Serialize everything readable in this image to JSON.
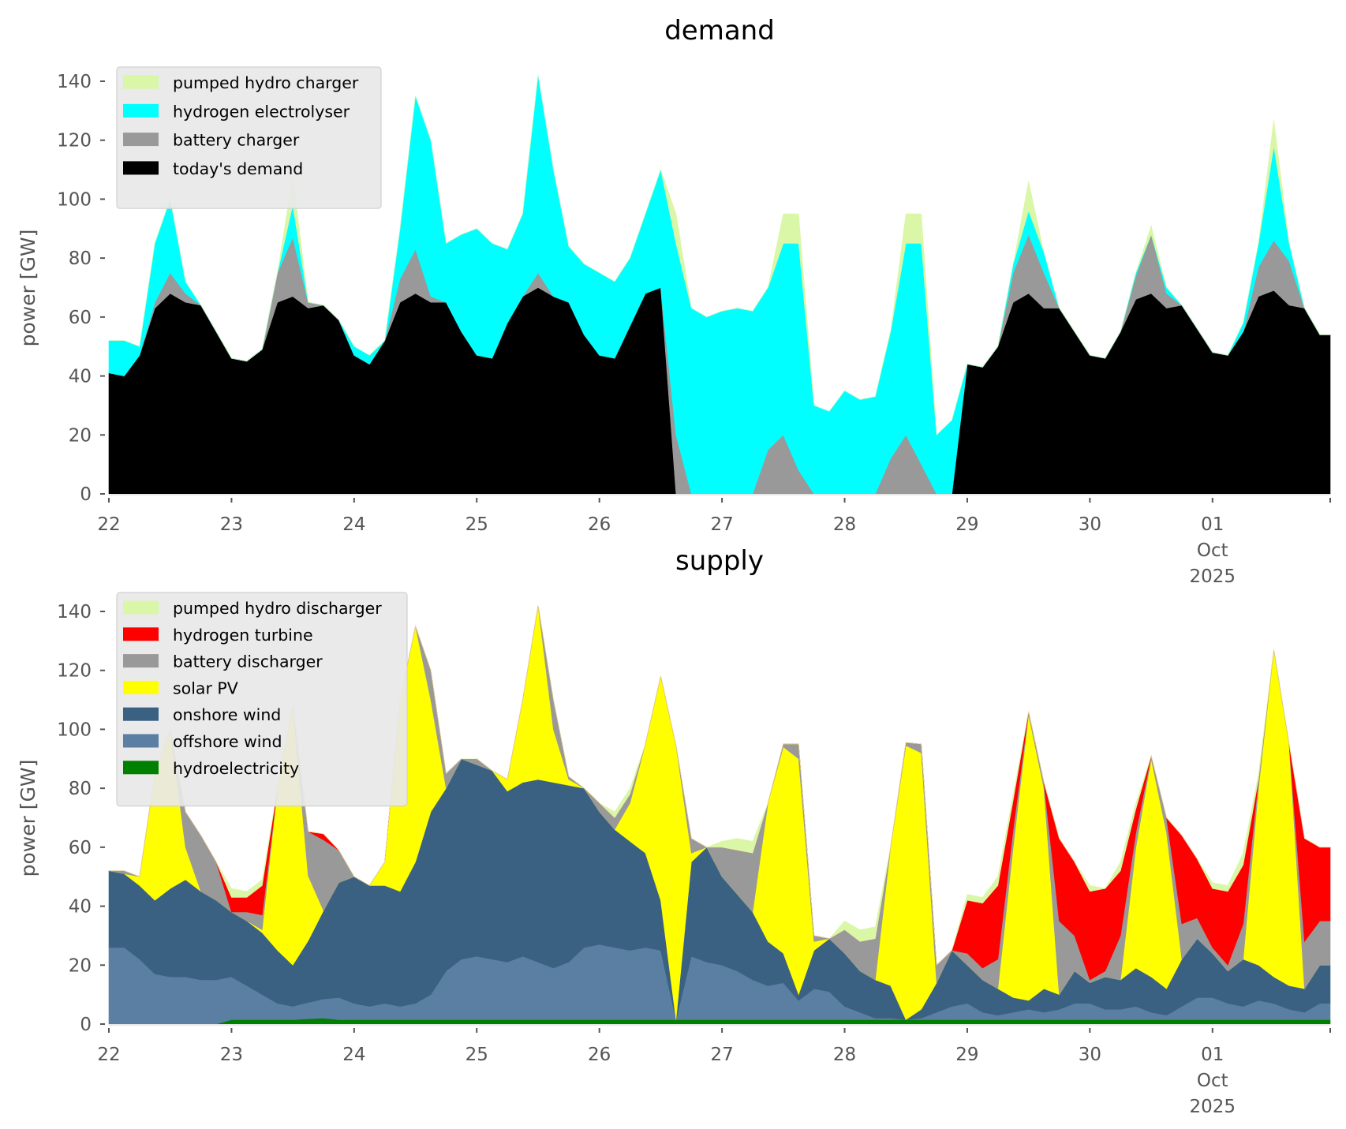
{
  "chart_data": [
    {
      "type": "area",
      "stacked": true,
      "title": "demand",
      "xlabel": "",
      "ylabel": "power [GW]",
      "ylim": [
        0,
        150
      ],
      "yticks": [
        0,
        20,
        40,
        60,
        80,
        100,
        120,
        140
      ],
      "xlim_days": [
        0,
        9.96
      ],
      "x_start": "2025-09-22 00:00",
      "step_hours": 3,
      "xticks": [
        {
          "day": 0,
          "lines": [
            "22"
          ]
        },
        {
          "day": 1,
          "lines": [
            "23"
          ]
        },
        {
          "day": 2,
          "lines": [
            "24"
          ]
        },
        {
          "day": 3,
          "lines": [
            "25"
          ]
        },
        {
          "day": 4,
          "lines": [
            "26"
          ]
        },
        {
          "day": 5,
          "lines": [
            "27"
          ]
        },
        {
          "day": 6,
          "lines": [
            "28"
          ]
        },
        {
          "day": 7,
          "lines": [
            "29"
          ]
        },
        {
          "day": 8,
          "lines": [
            "30"
          ]
        },
        {
          "day": 9,
          "lines": [
            "01",
            "Oct",
            "2025"
          ]
        }
      ],
      "legend_position": "upper-left",
      "grid": false,
      "series": [
        {
          "name": "today's demand",
          "color": "#000000",
          "values": [
            41,
            40,
            47,
            63,
            68,
            65,
            64,
            55,
            46,
            45,
            49,
            65,
            67,
            63,
            64,
            59,
            47,
            44,
            52,
            65,
            68,
            65,
            65,
            55,
            47,
            46,
            58,
            67,
            70,
            67,
            65,
            54,
            47,
            46,
            57,
            68,
            70,
            0,
            0,
            0,
            0,
            0,
            0,
            0,
            0,
            0,
            0,
            0,
            0,
            0,
            0,
            0,
            0,
            0,
            0,
            0,
            44,
            43,
            50,
            65,
            68,
            63,
            63,
            55,
            47,
            46,
            55,
            66,
            68,
            63,
            64,
            56,
            48,
            47,
            55,
            67,
            69,
            64,
            63,
            54
          ]
        },
        {
          "name": "battery charger",
          "color": "#999999",
          "values": [
            0,
            0,
            0,
            2,
            7,
            3,
            0,
            0,
            0,
            0,
            0,
            10,
            20,
            2,
            0,
            0,
            0,
            0,
            0,
            8,
            15,
            2,
            0,
            0,
            0,
            0,
            0,
            0,
            5,
            0,
            0,
            0,
            0,
            0,
            0,
            0,
            0,
            20,
            0,
            0,
            0,
            0,
            0,
            15,
            20,
            8,
            0,
            0,
            0,
            0,
            0,
            12,
            20,
            10,
            0,
            0,
            0,
            0,
            0,
            10,
            20,
            12,
            0,
            0,
            0,
            0,
            0,
            8,
            20,
            5,
            0,
            0,
            0,
            0,
            0,
            10,
            17,
            15,
            0,
            0
          ]
        },
        {
          "name": "hydrogen electrolyser",
          "color": "#00ffff",
          "values": [
            11,
            12,
            3,
            20,
            25,
            4,
            0,
            0,
            0,
            0,
            0,
            0,
            11,
            0,
            0,
            0,
            3,
            3,
            0,
            17,
            52,
            53,
            20,
            33,
            43,
            39,
            25,
            28,
            67,
            43,
            19,
            24,
            28,
            26,
            23,
            27,
            40,
            65,
            63,
            60,
            62,
            63,
            62,
            55,
            65,
            77,
            30,
            28,
            35,
            32,
            33,
            43,
            65,
            75,
            20,
            25,
            0,
            0,
            0,
            3,
            8,
            7,
            0,
            0,
            0,
            0,
            0,
            1,
            0,
            2,
            0,
            0,
            0,
            0,
            3,
            8,
            32,
            6,
            0,
            0
          ]
        },
        {
          "name": "pumped hydro charger",
          "color": "#d9f7a6",
          "values": [
            0,
            0,
            0,
            0,
            0,
            0,
            0,
            0,
            0,
            0,
            0,
            0,
            10,
            0,
            0,
            0,
            0,
            0,
            0,
            0,
            0,
            0,
            0,
            0,
            0,
            0,
            0,
            0,
            0,
            0,
            0,
            0,
            0,
            0,
            0,
            0,
            0,
            10,
            0,
            0,
            0,
            0,
            0,
            0,
            10,
            10,
            0,
            0,
            0,
            0,
            0,
            0,
            10,
            10,
            0,
            0,
            0,
            0,
            0,
            0,
            10,
            0,
            0,
            0,
            0,
            0,
            0,
            0,
            3,
            0,
            0,
            0,
            0,
            0,
            0,
            0,
            9,
            0,
            0,
            0
          ]
        }
      ],
      "legend_order": [
        "pumped hydro charger",
        "hydrogen electrolyser",
        "battery charger",
        "today's demand"
      ]
    },
    {
      "type": "area",
      "stacked": true,
      "title": "supply",
      "xlabel": "",
      "ylabel": "power [GW]",
      "ylim": [
        0,
        150
      ],
      "yticks": [
        0,
        20,
        40,
        60,
        80,
        100,
        120,
        140
      ],
      "xlim_days": [
        0,
        9.96
      ],
      "x_start": "2025-09-22 00:00",
      "step_hours": 3,
      "xticks": [
        {
          "day": 0,
          "lines": [
            "22"
          ]
        },
        {
          "day": 1,
          "lines": [
            "23"
          ]
        },
        {
          "day": 2,
          "lines": [
            "24"
          ]
        },
        {
          "day": 3,
          "lines": [
            "25"
          ]
        },
        {
          "day": 4,
          "lines": [
            "26"
          ]
        },
        {
          "day": 5,
          "lines": [
            "27"
          ]
        },
        {
          "day": 6,
          "lines": [
            "28"
          ]
        },
        {
          "day": 7,
          "lines": [
            "29"
          ]
        },
        {
          "day": 8,
          "lines": [
            "30"
          ]
        },
        {
          "day": 9,
          "lines": [
            "01",
            "Oct",
            "2025"
          ]
        }
      ],
      "legend_position": "upper-left",
      "grid": false,
      "series": [
        {
          "name": "hydroelectricity",
          "color": "#008000",
          "values": [
            0,
            0,
            0,
            0,
            0,
            0,
            0,
            0,
            1.5,
            1.5,
            1.5,
            1.5,
            1.5,
            1.8,
            2,
            1.5,
            1.5,
            1.5,
            1.5,
            1.5,
            1.5,
            1.5,
            1.5,
            1.5,
            1.5,
            1.5,
            1.5,
            1.5,
            1.5,
            1.5,
            1.5,
            1.5,
            1.5,
            1.5,
            1.5,
            1.5,
            1.5,
            1.5,
            1.5,
            1.5,
            1.5,
            1.5,
            1.5,
            1.5,
            1.5,
            1.5,
            1.5,
            1.5,
            1.5,
            1.5,
            1.5,
            1.5,
            1.5,
            1.5,
            1.5,
            1.5,
            1.5,
            1.5,
            1.5,
            1.5,
            1.5,
            1.5,
            1.5,
            1.5,
            1.5,
            1.5,
            1.5,
            1.5,
            1.5,
            1.5,
            1.5,
            1.5,
            1.5,
            1.5,
            1.5,
            1.5,
            1.5,
            1.5,
            1.5,
            1.5
          ]
        },
        {
          "name": "offshore wind",
          "color": "#5b7fa2",
          "values": [
            26,
            26,
            22,
            17,
            16,
            16,
            15,
            15,
            14.5,
            11.5,
            8.5,
            5.5,
            4.5,
            5.5,
            6.5,
            7.5,
            5.5,
            4.5,
            5.5,
            4.5,
            5.5,
            8.5,
            16.5,
            20.5,
            21.5,
            20.5,
            19.5,
            21.5,
            19.5,
            17.5,
            19.5,
            24.5,
            25.5,
            24.5,
            23.5,
            24.5,
            23.5,
            0,
            21.5,
            19.5,
            18.5,
            16.5,
            13.5,
            11.5,
            12.5,
            6.5,
            10.5,
            9.5,
            4.5,
            2.5,
            0.5,
            0.5,
            0,
            0.5,
            2.5,
            4.5,
            5.5,
            2.5,
            1.5,
            2.5,
            3.5,
            2.5,
            3.5,
            5.5,
            5.5,
            3.5,
            3.5,
            4.5,
            2.5,
            1.5,
            4.5,
            7.5,
            7.5,
            5.5,
            4.5,
            6.5,
            5.5,
            3.5,
            2.5,
            5.5
          ]
        },
        {
          "name": "onshore wind",
          "color": "#3b6182",
          "values": [
            26,
            25,
            25,
            25,
            30,
            33,
            30,
            27,
            22,
            22,
            21,
            18,
            14,
            21,
            30,
            39,
            43,
            41,
            40,
            39,
            48,
            62,
            62,
            68,
            65,
            64,
            58,
            59,
            62,
            63,
            60,
            54,
            45,
            40,
            37,
            32,
            17,
            0,
            32,
            39,
            30,
            26,
            23,
            15,
            10,
            2,
            13,
            18,
            18,
            14,
            13,
            11,
            0,
            3,
            10,
            19,
            13,
            11,
            9,
            5,
            3,
            8,
            5,
            11,
            7,
            11,
            10,
            13,
            12,
            9,
            16,
            20,
            15,
            11,
            16,
            12,
            9,
            8,
            8,
            13
          ]
        },
        {
          "name": "solar PV",
          "color": "#ffff00",
          "values": [
            0,
            0,
            3,
            43,
            54,
            11,
            0,
            0,
            0,
            0,
            1,
            55,
            88,
            22,
            0,
            0,
            0,
            0,
            8,
            65,
            80,
            38,
            0,
            0,
            0,
            0,
            4,
            28,
            59,
            18,
            2,
            0,
            0,
            0,
            13,
            37,
            76,
            93,
            3,
            0,
            0,
            0,
            0,
            47,
            70,
            80,
            3,
            0,
            0,
            0,
            0,
            47,
            93,
            87,
            0,
            0,
            0,
            0,
            0,
            51,
            97,
            68,
            0,
            0,
            0,
            0,
            0,
            41,
            74,
            53,
            0,
            0,
            0,
            0,
            0,
            60,
            111,
            82,
            0,
            0
          ]
        },
        {
          "name": "battery discharger",
          "color": "#999999",
          "values": [
            0,
            1,
            0,
            0,
            0,
            12,
            19,
            13,
            0,
            3,
            5,
            0,
            0,
            15,
            24,
            11,
            0,
            0,
            0,
            0,
            0,
            10,
            5,
            0,
            2,
            0,
            0,
            0,
            0,
            10,
            1,
            0,
            3,
            4,
            3,
            0,
            0,
            0,
            5,
            0,
            10,
            15,
            20,
            0,
            1,
            5,
            2,
            0,
            8,
            10,
            14,
            0,
            1,
            3,
            6,
            0,
            4,
            4,
            10,
            6,
            1,
            2,
            25,
            12,
            1,
            2,
            15,
            5,
            1,
            5,
            12,
            7,
            2,
            2,
            12,
            3,
            0,
            0,
            16,
            15
          ]
        },
        {
          "name": "hydrogen turbine",
          "color": "#ff0000",
          "values": [
            0,
            0,
            0,
            0,
            0,
            0,
            0,
            0,
            5,
            5,
            10,
            0,
            0,
            0,
            2,
            0,
            0,
            0,
            0,
            0,
            0,
            0,
            0,
            0,
            0,
            0,
            0,
            0,
            0,
            0,
            0,
            0,
            0,
            0,
            0,
            0,
            0,
            0,
            0,
            0,
            0,
            0,
            0,
            0,
            0,
            0,
            0,
            0,
            0,
            0,
            0,
            0,
            0,
            0,
            0,
            0,
            18,
            22,
            25,
            10,
            0,
            0,
            28,
            25,
            30,
            28,
            22,
            8,
            0,
            0,
            30,
            20,
            20,
            25,
            20,
            0,
            0,
            0,
            35,
            25
          ]
        },
        {
          "name": "pumped hydro discharger",
          "color": "#d9f7a6",
          "values": [
            0,
            0,
            0,
            0,
            0,
            0,
            0,
            0,
            3,
            2,
            2,
            0,
            0,
            0,
            0,
            0,
            0,
            0,
            0,
            0,
            0,
            0,
            0,
            0,
            0,
            0,
            0,
            0,
            0,
            0,
            0,
            0,
            0,
            2,
            2,
            0,
            0,
            0,
            0,
            0,
            2,
            4,
            4,
            0,
            0,
            0,
            0,
            0,
            3,
            4,
            4,
            0,
            0,
            0,
            0,
            0,
            2,
            2,
            3,
            2,
            0,
            0,
            0,
            0,
            2,
            0,
            3,
            2,
            0,
            0,
            0,
            0,
            2,
            2,
            4,
            2,
            0,
            0,
            0,
            0
          ]
        }
      ],
      "legend_order": [
        "pumped hydro discharger",
        "hydrogen turbine",
        "battery discharger",
        "solar PV",
        "onshore wind",
        "offshore wind",
        "hydroelectricity"
      ]
    }
  ]
}
